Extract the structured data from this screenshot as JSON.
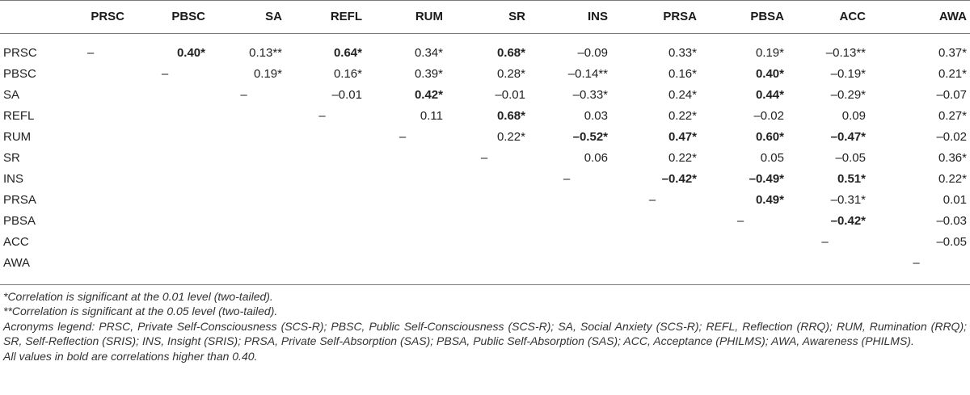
{
  "table": {
    "columns": [
      "PRSC",
      "PBSC",
      "SA",
      "REFL",
      "RUM",
      "SR",
      "INS",
      "PRSA",
      "PBSA",
      "ACC",
      "AWA"
    ],
    "rows": [
      {
        "label": "PRSC",
        "cells": [
          {
            "t": "–",
            "dash": true
          },
          {
            "t": "0.40*",
            "b": true
          },
          {
            "t": "0.13**"
          },
          {
            "t": "0.64*",
            "b": true
          },
          {
            "t": "0.34*"
          },
          {
            "t": "0.68*",
            "b": true
          },
          {
            "t": "–0.09"
          },
          {
            "t": "0.33*"
          },
          {
            "t": "0.19*"
          },
          {
            "t": "–0.13**"
          },
          {
            "t": "0.37*"
          }
        ]
      },
      {
        "label": "PBSC",
        "cells": [
          {
            "t": ""
          },
          {
            "t": "–",
            "dash": true
          },
          {
            "t": "0.19*"
          },
          {
            "t": "0.16*"
          },
          {
            "t": "0.39*"
          },
          {
            "t": "0.28*"
          },
          {
            "t": "–0.14**"
          },
          {
            "t": "0.16*"
          },
          {
            "t": "0.40*",
            "b": true
          },
          {
            "t": "–0.19*"
          },
          {
            "t": "0.21*"
          }
        ]
      },
      {
        "label": "SA",
        "cells": [
          {
            "t": ""
          },
          {
            "t": ""
          },
          {
            "t": "–",
            "dash": true
          },
          {
            "t": "–0.01"
          },
          {
            "t": "0.42*",
            "b": true
          },
          {
            "t": "–0.01"
          },
          {
            "t": "–0.33*"
          },
          {
            "t": "0.24*"
          },
          {
            "t": "0.44*",
            "b": true
          },
          {
            "t": "–0.29*"
          },
          {
            "t": "–0.07"
          }
        ]
      },
      {
        "label": "REFL",
        "cells": [
          {
            "t": ""
          },
          {
            "t": ""
          },
          {
            "t": ""
          },
          {
            "t": "–",
            "dash": true
          },
          {
            "t": "0.11"
          },
          {
            "t": "0.68*",
            "b": true
          },
          {
            "t": "0.03"
          },
          {
            "t": "0.22*"
          },
          {
            "t": "–0.02"
          },
          {
            "t": "0.09"
          },
          {
            "t": "0.27*"
          }
        ]
      },
      {
        "label": "RUM",
        "cells": [
          {
            "t": ""
          },
          {
            "t": ""
          },
          {
            "t": ""
          },
          {
            "t": ""
          },
          {
            "t": "–",
            "dash": true
          },
          {
            "t": "0.22*"
          },
          {
            "t": "–0.52*",
            "b": true
          },
          {
            "t": "0.47*",
            "b": true
          },
          {
            "t": "0.60*",
            "b": true
          },
          {
            "t": "–0.47*",
            "b": true
          },
          {
            "t": "–0.02"
          }
        ]
      },
      {
        "label": "SR",
        "cells": [
          {
            "t": ""
          },
          {
            "t": ""
          },
          {
            "t": ""
          },
          {
            "t": ""
          },
          {
            "t": ""
          },
          {
            "t": "–",
            "dash": true
          },
          {
            "t": "0.06"
          },
          {
            "t": "0.22*"
          },
          {
            "t": "0.05"
          },
          {
            "t": "–0.05"
          },
          {
            "t": "0.36*"
          }
        ]
      },
      {
        "label": "INS",
        "cells": [
          {
            "t": ""
          },
          {
            "t": ""
          },
          {
            "t": ""
          },
          {
            "t": ""
          },
          {
            "t": ""
          },
          {
            "t": ""
          },
          {
            "t": "–",
            "dash": true
          },
          {
            "t": "–0.42*",
            "b": true
          },
          {
            "t": "–0.49*",
            "b": true
          },
          {
            "t": "0.51*",
            "b": true
          },
          {
            "t": "0.22*"
          }
        ]
      },
      {
        "label": "PRSA",
        "cells": [
          {
            "t": ""
          },
          {
            "t": ""
          },
          {
            "t": ""
          },
          {
            "t": ""
          },
          {
            "t": ""
          },
          {
            "t": ""
          },
          {
            "t": ""
          },
          {
            "t": "–",
            "dash": true
          },
          {
            "t": "0.49*",
            "b": true
          },
          {
            "t": "–0.31*"
          },
          {
            "t": "0.01"
          }
        ]
      },
      {
        "label": "PBSA",
        "cells": [
          {
            "t": ""
          },
          {
            "t": ""
          },
          {
            "t": ""
          },
          {
            "t": ""
          },
          {
            "t": ""
          },
          {
            "t": ""
          },
          {
            "t": ""
          },
          {
            "t": ""
          },
          {
            "t": "–",
            "dash": true
          },
          {
            "t": "–0.42*",
            "b": true
          },
          {
            "t": "–0.03"
          }
        ]
      },
      {
        "label": "ACC",
        "cells": [
          {
            "t": ""
          },
          {
            "t": ""
          },
          {
            "t": ""
          },
          {
            "t": ""
          },
          {
            "t": ""
          },
          {
            "t": ""
          },
          {
            "t": ""
          },
          {
            "t": ""
          },
          {
            "t": ""
          },
          {
            "t": "–",
            "dash": true
          },
          {
            "t": "–0.05"
          }
        ]
      },
      {
        "label": "AWA",
        "cells": [
          {
            "t": ""
          },
          {
            "t": ""
          },
          {
            "t": ""
          },
          {
            "t": ""
          },
          {
            "t": ""
          },
          {
            "t": ""
          },
          {
            "t": ""
          },
          {
            "t": ""
          },
          {
            "t": ""
          },
          {
            "t": ""
          },
          {
            "t": "–",
            "dash": true
          }
        ]
      }
    ]
  },
  "notes": {
    "sig01": "*Correlation is significant at the 0.01 level (two-tailed).",
    "sig05": "**Correlation is significant at the 0.05 level (two-tailed).",
    "legend": "Acronyms legend: PRSC, Private Self-Consciousness (SCS-R); PBSC, Public Self-Consciousness (SCS-R); SA, Social Anxiety (SCS-R); REFL, Reflection (RRQ); RUM, Rumination (RRQ); SR, Self-Reflection (SRIS); INS, Insight (SRIS); PRSA, Private Self-Absorption (SAS); PBSA, Public Self-Absorption (SAS); ACC, Acceptance (PHILMS); AWA, Awareness (PHILMS).",
    "bold": "All values in bold are correlations higher than 0.40."
  }
}
